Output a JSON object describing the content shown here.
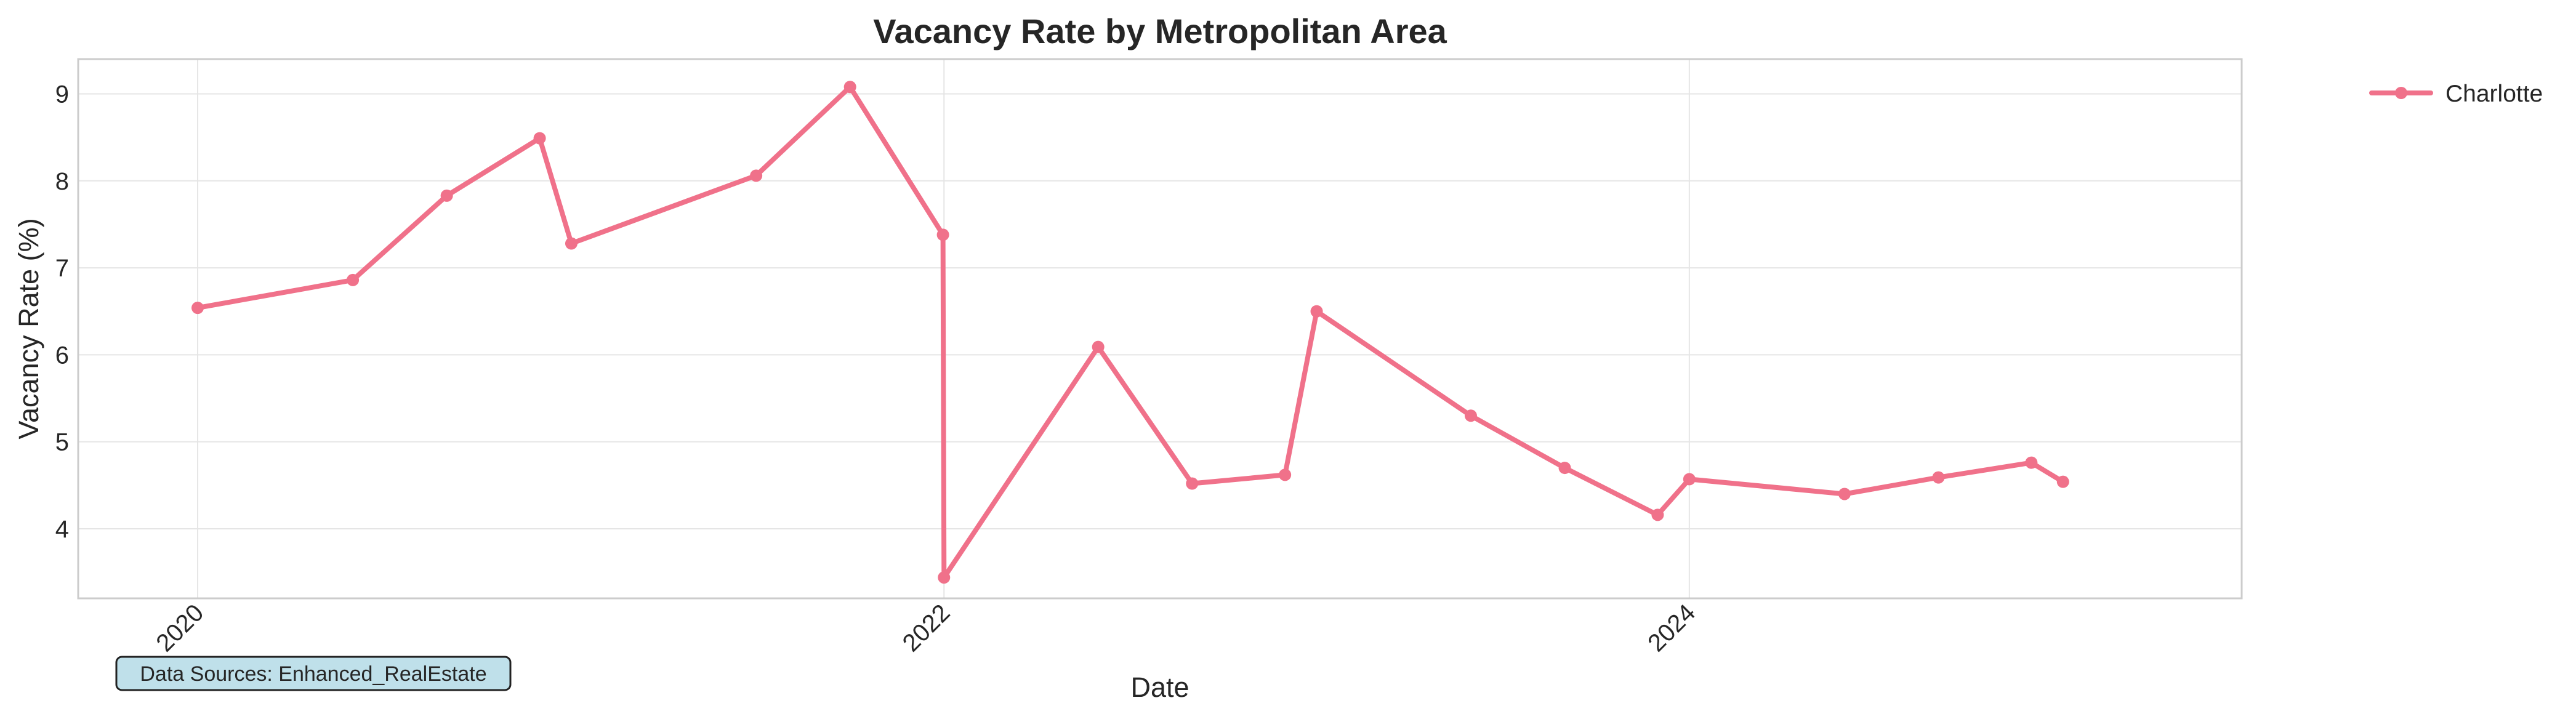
{
  "colors": {
    "series": "#f0718a",
    "grid": "#e5e5e5",
    "frame": "#cccccc",
    "source_box_fill": "#bfe0ea",
    "source_box_stroke": "#222222"
  },
  "chart_data": {
    "type": "line",
    "title": "Vacancy Rate by Metropolitan Area",
    "xlabel": "Date",
    "ylabel": "Vacancy Rate (%)",
    "xlim": [
      "2019-09-06",
      "2025-06-25"
    ],
    "ylim": [
      3.2,
      9.4
    ],
    "x_ticks": [
      "2020-01-01",
      "2022-01-01",
      "2024-01-01"
    ],
    "x_tick_labels": [
      "2020",
      "2022",
      "2024"
    ],
    "y_ticks": [
      4,
      5,
      6,
      7,
      8,
      9
    ],
    "y_tick_labels": [
      "4",
      "5",
      "6",
      "7",
      "8",
      "9"
    ],
    "grid": true,
    "legend_position": "outside-top-right",
    "series": [
      {
        "name": "Charlotte",
        "points": [
          {
            "date": "2020-01-01",
            "value": 6.54
          },
          {
            "date": "2020-06-01",
            "value": 6.86
          },
          {
            "date": "2020-09-01",
            "value": 7.83
          },
          {
            "date": "2020-12-01",
            "value": 8.49
          },
          {
            "date": "2021-01-01",
            "value": 7.28
          },
          {
            "date": "2021-07-01",
            "value": 8.06
          },
          {
            "date": "2021-10-01",
            "value": 9.08
          },
          {
            "date": "2021-12-31",
            "value": 7.38
          },
          {
            "date": "2022-01-01",
            "value": 3.44
          },
          {
            "date": "2022-06-01",
            "value": 6.09
          },
          {
            "date": "2022-09-01",
            "value": 4.52
          },
          {
            "date": "2022-12-01",
            "value": 4.62
          },
          {
            "date": "2023-01-01",
            "value": 6.5
          },
          {
            "date": "2023-06-01",
            "value": 5.3
          },
          {
            "date": "2023-09-01",
            "value": 4.7
          },
          {
            "date": "2023-12-01",
            "value": 4.16
          },
          {
            "date": "2024-01-01",
            "value": 4.57
          },
          {
            "date": "2024-06-01",
            "value": 4.4
          },
          {
            "date": "2024-09-01",
            "value": 4.59
          },
          {
            "date": "2024-12-01",
            "value": 4.76
          },
          {
            "date": "2025-01-01",
            "value": 4.54
          }
        ]
      }
    ],
    "annotation": "Data Sources: Enhanced_RealEstate"
  }
}
